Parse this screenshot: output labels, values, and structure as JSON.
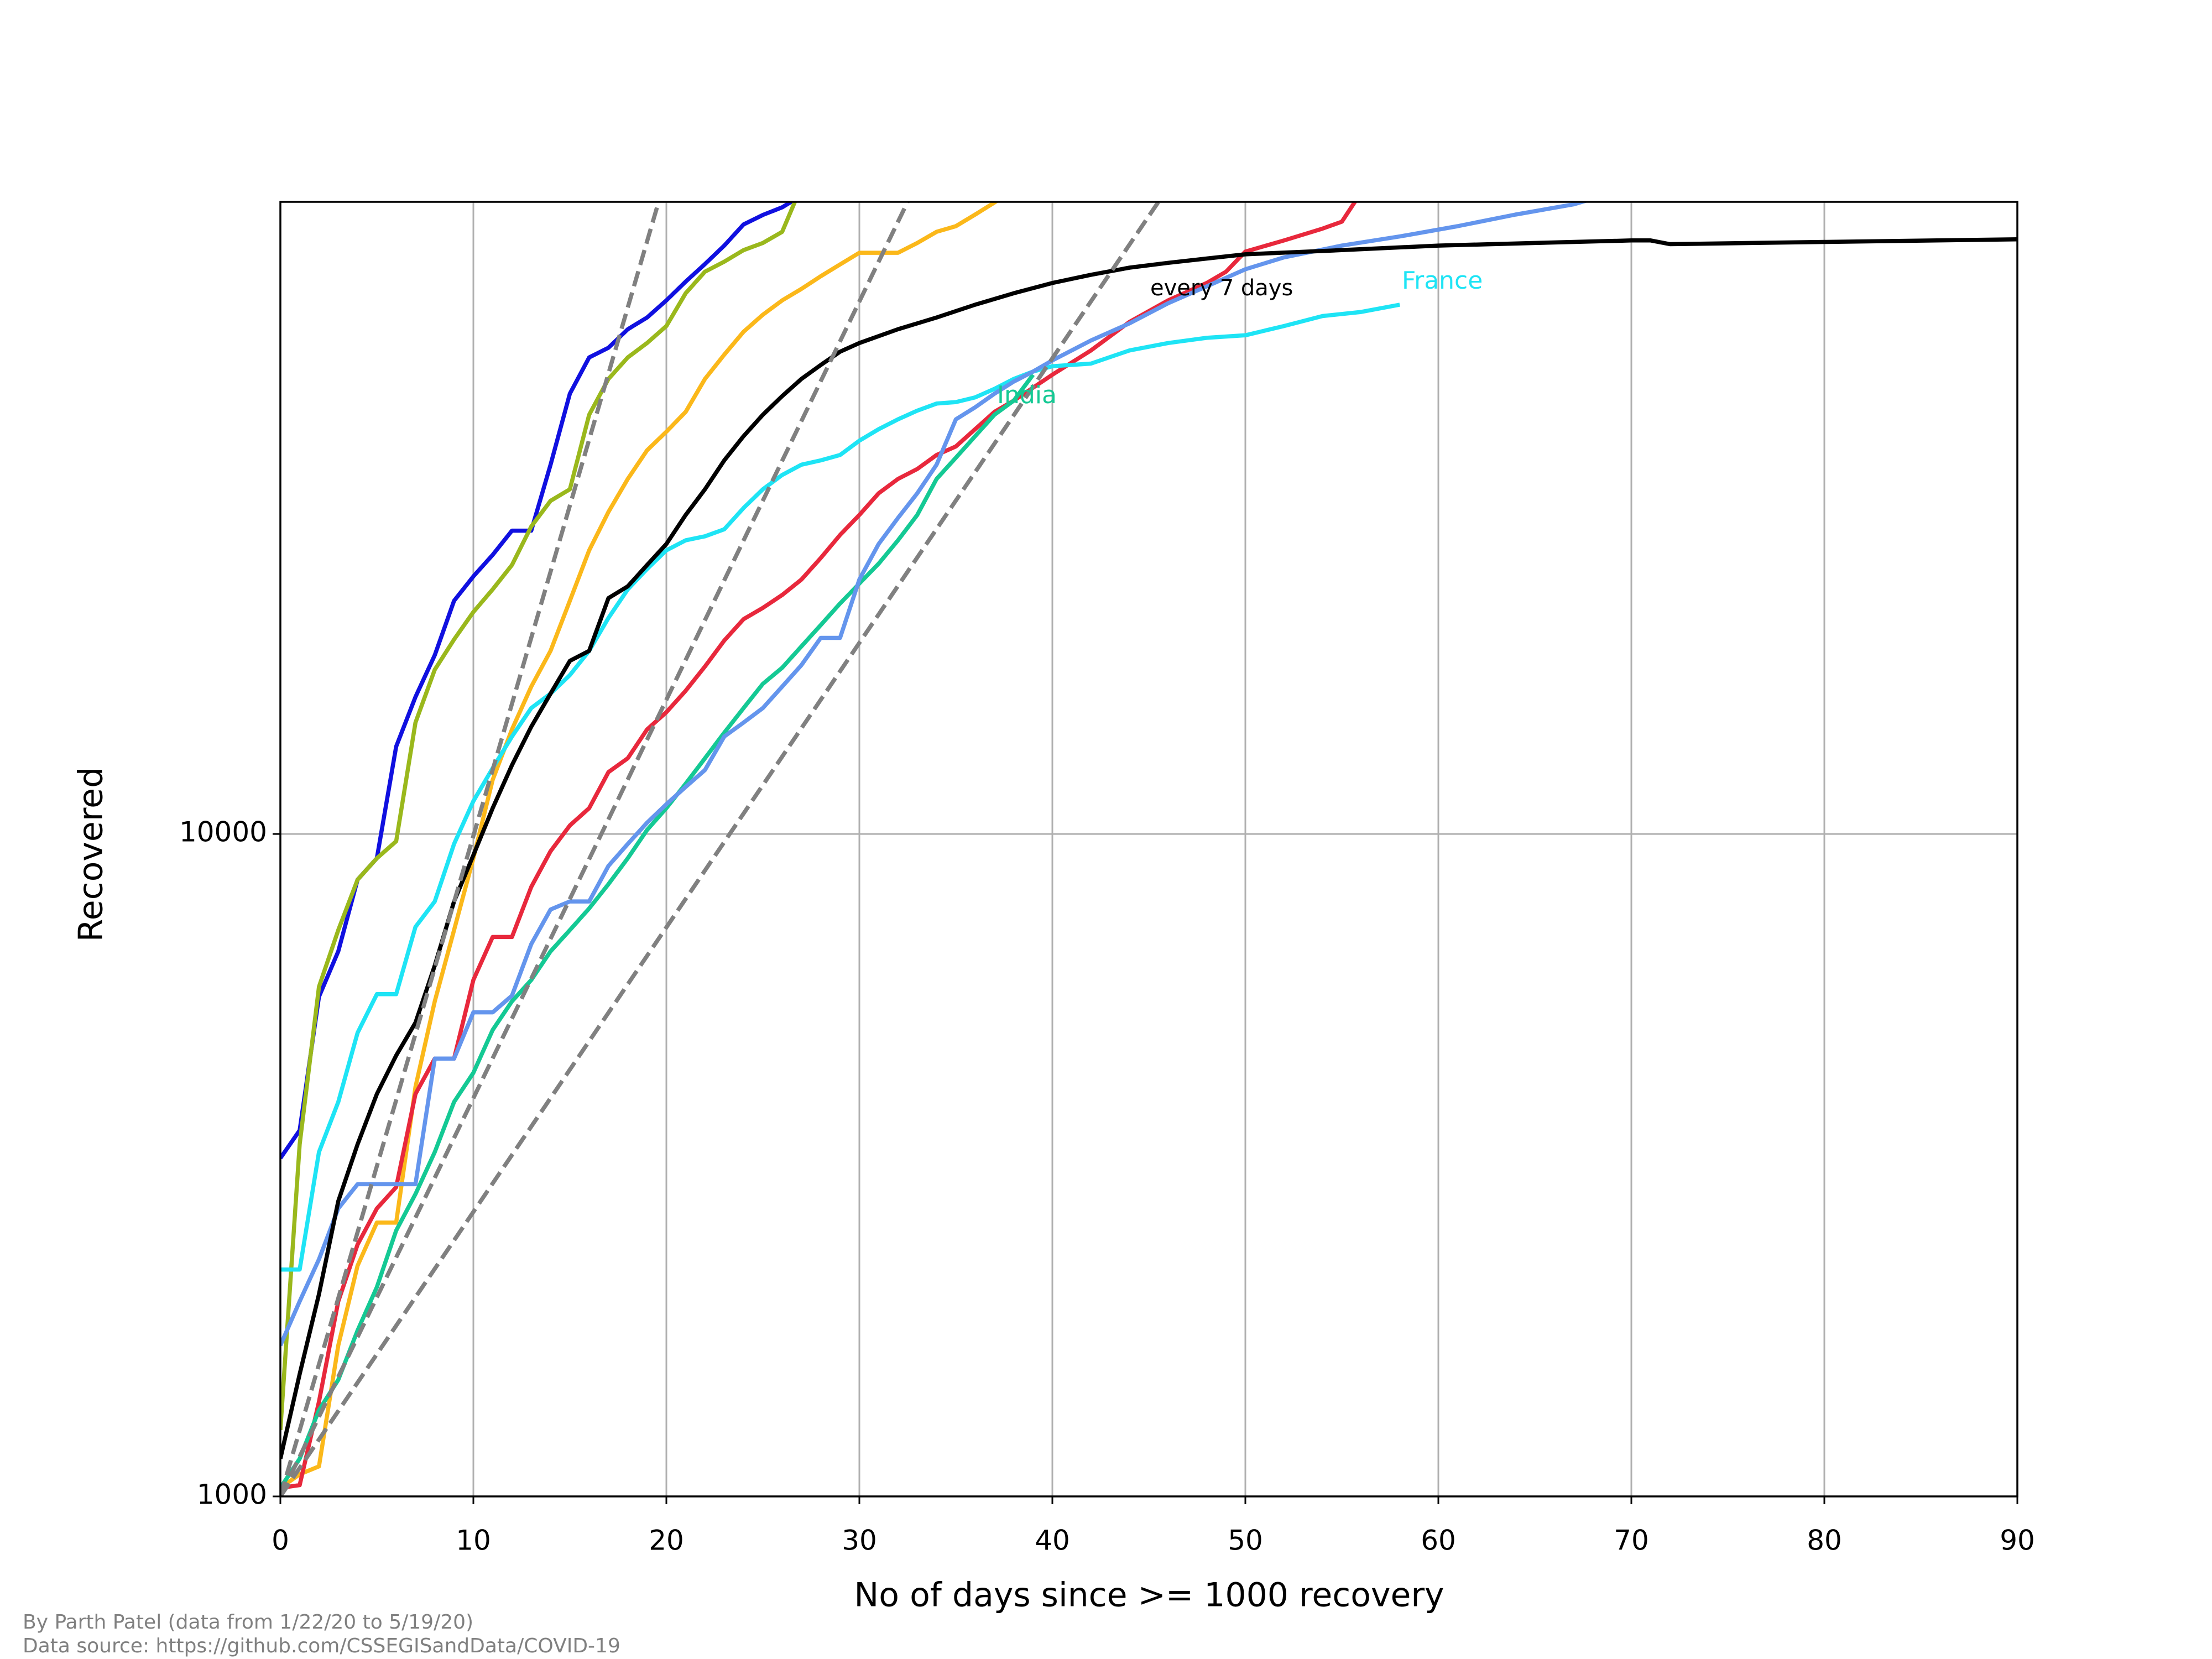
{
  "chart_data": {
    "type": "line",
    "x_label": "No of days since >= 1000 recovery",
    "y_label": "Recovered",
    "annotation": "every 7 days",
    "footer": [
      "By Parth Patel (data from 1/22/20 to 5/19/20)",
      "Data source: https://github.com/CSSEGISandData/COVID-19"
    ],
    "yscale": "log",
    "grid": true,
    "xlim": [
      0,
      90
    ],
    "xticks": [
      0,
      10,
      20,
      30,
      40,
      50,
      60,
      70,
      80,
      90
    ],
    "ylim": [
      1000,
      90000
    ],
    "yticks": [
      1000,
      10000
    ],
    "series": [
      {
        "color": "#1010e0",
        "x": [
          0,
          1,
          2,
          3,
          4,
          5,
          6,
          7,
          8,
          9,
          10,
          11,
          12,
          13,
          14,
          15,
          16,
          17,
          18,
          19,
          20,
          21,
          22,
          23,
          24,
          25,
          26,
          27
        ],
        "values": [
          3240,
          3570,
          5680,
          6650,
          8530,
          9190,
          13550,
          16100,
          18620,
          22490,
          24480,
          26380,
          28700,
          28700,
          36100,
          46200,
          52400,
          54200,
          57800,
          60200,
          63900,
          68200,
          72500,
          77300,
          83200,
          86000,
          88300,
          92000
        ]
      },
      {
        "color": "#9ab81c",
        "x": [
          0,
          1,
          2,
          3,
          4,
          5,
          6,
          7,
          8,
          9,
          10,
          11,
          12,
          13,
          14,
          15,
          16,
          17,
          18,
          19,
          20,
          21,
          22,
          23,
          24,
          25,
          26,
          27
        ],
        "values": [
          1260,
          3400,
          5880,
          7160,
          8530,
          9190,
          9750,
          14730,
          17700,
          19660,
          21630,
          23400,
          25470,
          29120,
          31840,
          33140,
          42940,
          48630,
          52400,
          55100,
          58450,
          65500,
          70600,
          73100,
          76100,
          78000,
          81100,
          95000
        ]
      },
      {
        "color": "#fbb81a",
        "x": [
          0,
          1,
          2,
          3,
          4,
          5,
          6,
          7,
          8,
          9,
          10,
          11,
          12,
          13,
          14,
          15,
          16,
          17,
          18,
          19,
          20,
          21,
          22,
          23,
          24,
          25,
          26,
          27,
          28,
          29,
          30,
          31,
          32,
          33,
          34,
          35,
          36,
          37,
          38
        ],
        "values": [
          1030,
          1080,
          1110,
          1690,
          2230,
          2590,
          2590,
          4150,
          5590,
          7160,
          9190,
          12070,
          14380,
          16690,
          18900,
          22490,
          26800,
          30630,
          34350,
          37950,
          40480,
          43370,
          48630,
          52920,
          57300,
          60800,
          63900,
          66500,
          69500,
          72400,
          75400,
          75400,
          75400,
          78000,
          81100,
          82700,
          86100,
          89800,
          94000
        ]
      },
      {
        "color": "#e8283c",
        "x": [
          0,
          1,
          2,
          3,
          4,
          5,
          6,
          7,
          8,
          9,
          10,
          11,
          12,
          13,
          14,
          15,
          16,
          17,
          18,
          19,
          20,
          21,
          22,
          23,
          24,
          25,
          26,
          27,
          28,
          29,
          30,
          31,
          32,
          33,
          34,
          35,
          36,
          37,
          38,
          40,
          42,
          44,
          46,
          48,
          49,
          50,
          52,
          54,
          55,
          56
        ],
        "values": [
          1030,
          1040,
          1390,
          1970,
          2400,
          2720,
          2930,
          4050,
          4580,
          4580,
          6020,
          6990,
          6990,
          8320,
          9420,
          10300,
          10940,
          12400,
          13010,
          14380,
          15270,
          16450,
          17900,
          19590,
          21100,
          21940,
          22950,
          24220,
          26100,
          28270,
          30310,
          32680,
          34350,
          35560,
          37330,
          38460,
          40840,
          43370,
          45100,
          49350,
          53700,
          59300,
          63900,
          67890,
          70600,
          75700,
          78700,
          82000,
          84000,
          93000
        ]
      },
      {
        "name": "India",
        "color": "#14c994",
        "x": [
          0,
          1,
          2,
          3,
          4,
          5,
          6,
          7,
          8,
          9,
          10,
          11,
          12,
          13,
          14,
          15,
          16,
          17,
          18,
          19,
          20,
          21,
          22,
          23,
          24,
          25,
          26,
          27,
          28,
          29,
          30,
          31,
          32,
          33,
          34,
          35,
          36,
          37,
          38,
          39
        ],
        "values": [
          1030,
          1140,
          1350,
          1500,
          1780,
          2070,
          2520,
          2860,
          3310,
          3940,
          4360,
          5060,
          5590,
          6020,
          6650,
          7160,
          7720,
          8400,
          9190,
          10140,
          10940,
          11910,
          13010,
          14220,
          15490,
          16850,
          17820,
          19200,
          20670,
          22280,
          23880,
          25590,
          27750,
          30310,
          34350,
          36980,
          39860,
          42940,
          45100,
          49350
        ]
      },
      {
        "name": "France",
        "color": "#1ee4f5",
        "x": [
          0,
          1,
          2,
          3,
          4,
          5,
          6,
          7,
          8,
          9,
          10,
          11,
          12,
          13,
          14,
          15,
          16,
          17,
          18,
          19,
          20,
          21,
          22,
          23,
          24,
          25,
          26,
          27,
          28,
          29,
          30,
          31,
          32,
          33,
          34,
          35,
          36,
          37,
          38,
          39,
          40,
          42,
          44,
          46,
          48,
          50,
          52,
          54,
          56,
          58
        ],
        "values": [
          2200,
          2200,
          3310,
          3940,
          5010,
          5730,
          5730,
          7240,
          7910,
          9660,
          11210,
          12570,
          14030,
          15490,
          16290,
          17370,
          18900,
          21190,
          23400,
          25120,
          26800,
          27750,
          28140,
          28840,
          31050,
          33140,
          34830,
          36100,
          36640,
          37330,
          39240,
          40840,
          42260,
          43550,
          44640,
          44870,
          45610,
          46980,
          48630,
          49890,
          50820,
          51290,
          53700,
          55100,
          56100,
          56600,
          58450,
          60520,
          61380,
          62950
        ]
      },
      {
        "color": "#6495ed",
        "x": [
          0,
          1,
          2,
          3,
          4,
          5,
          6,
          7,
          8,
          9,
          10,
          11,
          12,
          13,
          14,
          15,
          16,
          17,
          18,
          19,
          20,
          21,
          22,
          23,
          24,
          25,
          26,
          27,
          28,
          29,
          30,
          31,
          32,
          33,
          34,
          35,
          36,
          37,
          38,
          39,
          40,
          42,
          44,
          46,
          48,
          50,
          52,
          55,
          58,
          61,
          64,
          67,
          68
        ],
        "values": [
          1690,
          1970,
          2280,
          2720,
          2960,
          2960,
          2960,
          2960,
          4580,
          4580,
          5380,
          5380,
          5700,
          6820,
          7690,
          7910,
          7910,
          8950,
          9660,
          10400,
          11090,
          11780,
          12490,
          14030,
          14730,
          15490,
          16690,
          17990,
          19770,
          19770,
          24220,
          27400,
          29990,
          32680,
          36100,
          42260,
          44060,
          46200,
          48190,
          49890,
          51870,
          55590,
          59000,
          63280,
          67100,
          71200,
          74200,
          77300,
          79800,
          82700,
          86100,
          89200,
          91000
        ]
      },
      {
        "color": "#000000",
        "x": [
          0,
          1,
          2,
          3,
          4,
          5,
          6,
          7,
          8,
          9,
          10,
          11,
          12,
          13,
          14,
          15,
          16,
          17,
          18,
          19,
          20,
          21,
          22,
          23,
          24,
          25,
          26,
          27,
          28,
          29,
          30,
          32,
          34,
          36,
          38,
          40,
          42,
          44,
          46,
          48,
          50,
          55,
          60,
          65,
          70,
          71,
          72,
          80,
          90
        ],
        "values": [
          1140,
          1530,
          2020,
          2790,
          3400,
          4050,
          4630,
          5190,
          6330,
          7910,
          9290,
          10940,
          12700,
          14520,
          16290,
          18250,
          18900,
          22700,
          23650,
          25470,
          27400,
          30310,
          33140,
          36640,
          39860,
          42940,
          45810,
          48630,
          51050,
          53460,
          55100,
          57800,
          60200,
          62950,
          65500,
          67890,
          69850,
          71600,
          72800,
          73900,
          75000,
          76100,
          77300,
          78000,
          78700,
          78700,
          77700,
          78300,
          79000
        ]
      },
      {
        "color": "#808080",
        "dashed": true,
        "x": [
          0,
          19.6
        ],
        "values": [
          1000,
          90000
        ]
      },
      {
        "color": "#808080",
        "dashed": true,
        "x": [
          0,
          32.5
        ],
        "values": [
          1000,
          90000
        ]
      },
      {
        "color": "#808080",
        "dashed": true,
        "x": [
          0,
          45.5
        ],
        "values": [
          1000,
          90000
        ]
      }
    ]
  }
}
